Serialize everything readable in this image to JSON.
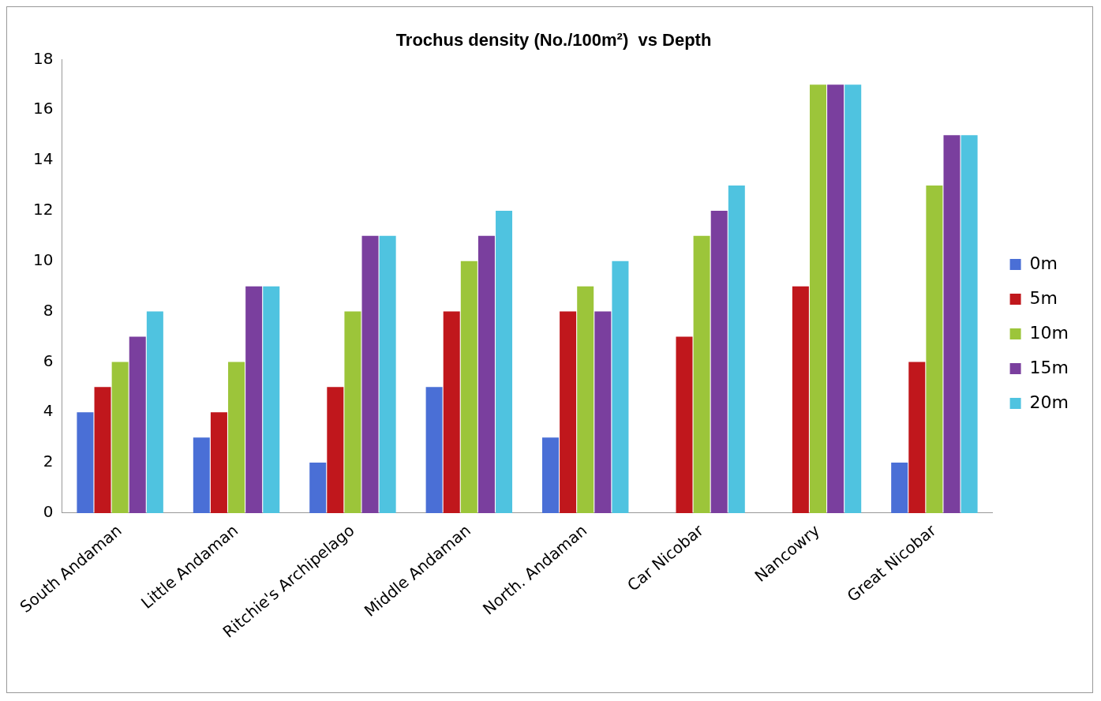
{
  "chart_data": {
    "type": "bar",
    "title": "Trochus density (No./100m²)  vs Depth",
    "categories": [
      "South Andaman",
      "Little Andaman",
      "Ritchie's Archipelago",
      "Middle Andaman",
      "North. Andaman",
      "Car Nicobar",
      "Nancowry",
      "Great Nicobar"
    ],
    "series": [
      {
        "name": "0m",
        "color": "#4a6fd6",
        "values": [
          4,
          3,
          2,
          5,
          3,
          0,
          0,
          2
        ]
      },
      {
        "name": "5m",
        "color": "#c0171c",
        "values": [
          5,
          4,
          5,
          8,
          8,
          7,
          9,
          6
        ]
      },
      {
        "name": "10m",
        "color": "#9cc53a",
        "values": [
          6,
          6,
          8,
          10,
          9,
          11,
          17,
          13
        ]
      },
      {
        "name": "15m",
        "color": "#7a3f9e",
        "values": [
          7,
          9,
          11,
          11,
          8,
          12,
          17,
          15
        ]
      },
      {
        "name": "20m",
        "color": "#4fc3e0",
        "values": [
          8,
          9,
          11,
          12,
          10,
          13,
          17,
          15
        ]
      }
    ],
    "ylim": [
      0,
      18
    ],
    "yticks": [
      0,
      2,
      4,
      6,
      8,
      10,
      12,
      14,
      16,
      18
    ],
    "grid": false,
    "legend": "right"
  }
}
